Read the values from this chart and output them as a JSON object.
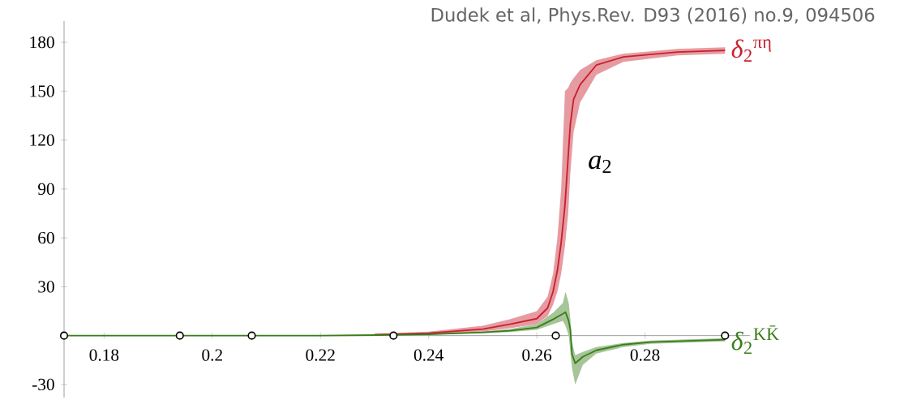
{
  "chart_data": {
    "type": "line",
    "annotations": [
      "Dudek et al, Phys.Rev. D93 (2016) no.9, 094506",
      "*a*$_{2}$"
    ],
    "xlim": [
      0.1726,
      0.2994
    ],
    "ylim": [
      -38,
      193
    ],
    "xticks": [
      0.18,
      0.2,
      0.22,
      0.24,
      0.26,
      0.28
    ],
    "yticks": [
      -30,
      30,
      60,
      90,
      120,
      150,
      180
    ],
    "grid": false,
    "series": [
      {
        "name": "*δ*$_{2}$$^{πη}$",
        "color": "#c8202f",
        "x": [
          0.23,
          0.24,
          0.25,
          0.255,
          0.26,
          0.262,
          0.263,
          0.2638,
          0.2645,
          0.2652,
          0.2658,
          0.2662,
          0.2668,
          0.268,
          0.271,
          0.276,
          0.286,
          0.2948
        ],
        "values": [
          0.6,
          1.5,
          4,
          7,
          10.4,
          17,
          27,
          40,
          57,
          80,
          110,
          130,
          145,
          154,
          166,
          171,
          174,
          175
        ],
        "upper": [
          0.9,
          2.5,
          6,
          10,
          15,
          24,
          38,
          60,
          90,
          150,
          152,
          155,
          158,
          163,
          169,
          173,
          176,
          177
        ],
        "lower": [
          0.3,
          0.8,
          2.5,
          4.5,
          7,
          12,
          19,
          27,
          38,
          55,
          75,
          100,
          125,
          143,
          160,
          168,
          172,
          173
        ]
      },
      {
        "name": "*δ*$_{2}$$^{KK̄}$",
        "color": "#3a7d1a",
        "x": [
          0.1726,
          0.22,
          0.23,
          0.24,
          0.25,
          0.255,
          0.26,
          0.263,
          0.2648,
          0.2653,
          0.2659,
          0.2662,
          0.2665,
          0.2671,
          0.2685,
          0.271,
          0.276,
          0.281,
          0.2948
        ],
        "values": [
          0,
          0,
          0.3,
          0.8,
          2,
          3,
          5,
          10,
          13.4,
          14.4,
          9,
          3.5,
          -11.4,
          -17,
          -13,
          -9,
          -5.5,
          -4,
          -2.5
        ],
        "upper": [
          0,
          0,
          0.4,
          1,
          2.6,
          4,
          7,
          14,
          20,
          27,
          20,
          10,
          -4,
          -12,
          -10,
          -7,
          -4.5,
          -3,
          -1.5
        ],
        "lower": [
          0,
          0,
          0.2,
          0.6,
          1.4,
          2.2,
          3.5,
          7,
          9,
          6,
          0,
          -10,
          -20,
          -30,
          -18,
          -11,
          -7,
          -5,
          -3.5
        ]
      },
      {
        "type": "scatter",
        "marker": "circle",
        "color": "#000000",
        "x": [
          0.1726,
          0.194,
          0.2073,
          0.2335,
          0.2635,
          0.2948
        ],
        "values": [
          0,
          0,
          0,
          0,
          0,
          0
        ]
      }
    ]
  }
}
